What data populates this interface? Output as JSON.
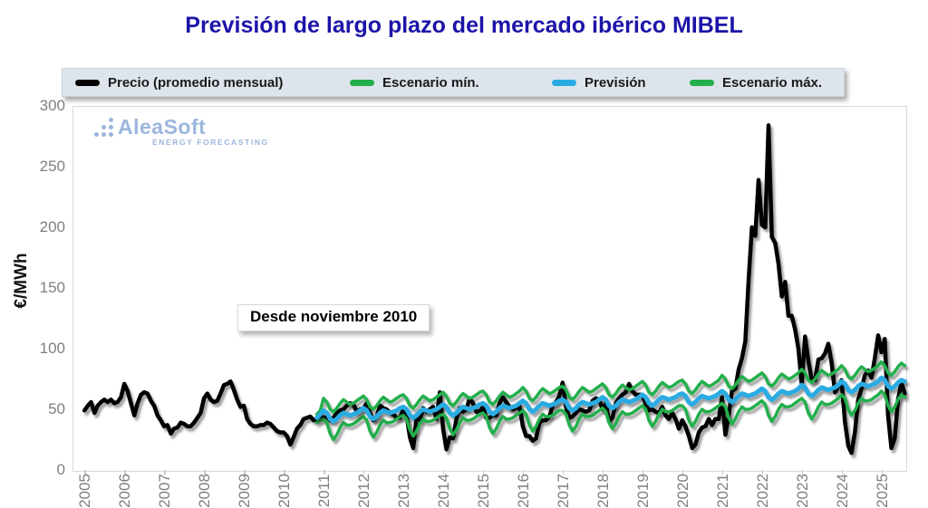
{
  "title": "Previsión de largo plazo del mercado ibérico MIBEL",
  "legend": {
    "items": [
      {
        "label": "Precio (promedio mensual)",
        "color": "#000000"
      },
      {
        "label": "Escenario mín.",
        "color": "#22af4c"
      },
      {
        "label": "Previsión",
        "color": "#29abe2"
      },
      {
        "label": "Escenario máx.",
        "color": "#22af4c"
      }
    ]
  },
  "watermark": {
    "name": "AleaSoft",
    "tagline": "ENERGY FORECASTING",
    "color": "#9cb6dc"
  },
  "annotation": "Desde noviembre 2010",
  "colors": {
    "title": "#1d14a8",
    "axis_text": "#7f7f7f",
    "plot_border": "#d9d9d9",
    "legend_bg": "#dde4eb"
  },
  "chart_data": {
    "type": "line",
    "title": "Previsión de largo plazo del mercado ibérico MIBEL",
    "xlabel": "",
    "ylabel": "€/MWh",
    "grid": false,
    "legend_position": "top",
    "x_range": [
      2004.7,
      2025.6
    ],
    "y_range": [
      0,
      300
    ],
    "x_ticks": [
      2005,
      2006,
      2007,
      2008,
      2009,
      2010,
      2011,
      2012,
      2013,
      2014,
      2015,
      2016,
      2017,
      2018,
      2019,
      2020,
      2021,
      2022,
      2023,
      2024,
      2025
    ],
    "y_ticks": [
      0,
      50,
      100,
      150,
      200,
      250,
      300
    ],
    "series": [
      {
        "name": "Precio (promedio mensual)",
        "color": "#000000",
        "width": 4.5,
        "start_year": 2005,
        "start_month": 1,
        "monthly_values": [
          49,
          53,
          56,
          47,
          53,
          56,
          58,
          56,
          58,
          55,
          56,
          60,
          71,
          65,
          55,
          45,
          55,
          62,
          64,
          63,
          57,
          53,
          45,
          41,
          36,
          37,
          30,
          34,
          35,
          39,
          38,
          36,
          36,
          39,
          43,
          47,
          59,
          63,
          58,
          56,
          57,
          63,
          70,
          71,
          73,
          66,
          58,
          52,
          53,
          42,
          38,
          36,
          36,
          37,
          37,
          39,
          38,
          35,
          32,
          31,
          31,
          28,
          21,
          27,
          34,
          37,
          42,
          43,
          44,
          41,
          42,
          46,
          42,
          44,
          41,
          43,
          47,
          49,
          50,
          53,
          55,
          54,
          48,
          50,
          51,
          55,
          47,
          41,
          44,
          53,
          51,
          50,
          47,
          46,
          43,
          43,
          50,
          45,
          27,
          18,
          43,
          41,
          51,
          48,
          50,
          52,
          42,
          64,
          34,
          17,
          27,
          26,
          42,
          51,
          48,
          50,
          59,
          55,
          48,
          48,
          52,
          43,
          43,
          45,
          45,
          55,
          60,
          56,
          52,
          50,
          51,
          53,
          36,
          28,
          28,
          24,
          26,
          39,
          41,
          41,
          44,
          53,
          56,
          61,
          72,
          52,
          43,
          44,
          47,
          50,
          49,
          48,
          49,
          57,
          59,
          58,
          50,
          55,
          40,
          43,
          55,
          59,
          62,
          64,
          71,
          65,
          62,
          62,
          62,
          54,
          49,
          50,
          48,
          47,
          52,
          45,
          42,
          47,
          42,
          34,
          41,
          36,
          28,
          18,
          21,
          31,
          35,
          36,
          42,
          37,
          42,
          42,
          60,
          29,
          45,
          65,
          67,
          83,
          92,
          106,
          156,
          200,
          193,
          239,
          202,
          200,
          284,
          192,
          187,
          170,
          143,
          155,
          127,
          127,
          116,
          100,
          70,
          110,
          90,
          74,
          74,
          91,
          92,
          96,
          104,
          88,
          64,
          69,
          74,
          40,
          20,
          14,
          31,
          58,
          67,
          78,
          82,
          76,
          92,
          111,
          97,
          108,
          45,
          18,
          26,
          58,
          72,
          63
        ]
      },
      {
        "name": "Escenario mín.",
        "color": "#22af4c",
        "width": 3.5,
        "start_year": 2010,
        "start_month": 11,
        "monthly_values": [
          39,
          41,
          42,
          39,
          30,
          25,
          29,
          35,
          39,
          37,
          37,
          38,
          40,
          42,
          44,
          41,
          32,
          27,
          31,
          37,
          41,
          39,
          39,
          40,
          42,
          44,
          45,
          42,
          33,
          28,
          32,
          38,
          42,
          40,
          40,
          41,
          43,
          45,
          46,
          43,
          34,
          29,
          33,
          39,
          43,
          41,
          41,
          42,
          44,
          46,
          47,
          44,
          35,
          30,
          34,
          40,
          44,
          42,
          42,
          43,
          45,
          47,
          49,
          46,
          37,
          32,
          36,
          42,
          46,
          44,
          44,
          45,
          47,
          49,
          49,
          46,
          37,
          32,
          36,
          42,
          46,
          44,
          44,
          45,
          47,
          49,
          51,
          48,
          39,
          34,
          38,
          44,
          48,
          46,
          46,
          47,
          49,
          51,
          53,
          50,
          41,
          36,
          40,
          46,
          50,
          48,
          48,
          49,
          51,
          53,
          53,
          50,
          41,
          36,
          40,
          46,
          50,
          48,
          48,
          49,
          51,
          53,
          55,
          52,
          43,
          38,
          42,
          48,
          52,
          50,
          50,
          51,
          53,
          55,
          57,
          54,
          45,
          40,
          44,
          50,
          54,
          52,
          52,
          53,
          55,
          57,
          59,
          56,
          47,
          42,
          46,
          52,
          56,
          54,
          54,
          55,
          57,
          59,
          62,
          59,
          50,
          45,
          49,
          55,
          59,
          57,
          57,
          58,
          60,
          62,
          65,
          62,
          53,
          48,
          52,
          58,
          62,
          60
        ]
      },
      {
        "name": "Escenario máx.",
        "color": "#22af4c",
        "width": 3.5,
        "start_year": 2010,
        "start_month": 11,
        "monthly_values": [
          46,
          49,
          59,
          56,
          50,
          48,
          51,
          55,
          58,
          56,
          54,
          55,
          57,
          59,
          61,
          58,
          52,
          50,
          53,
          57,
          60,
          58,
          56,
          57,
          59,
          61,
          62,
          59,
          53,
          51,
          54,
          58,
          61,
          59,
          57,
          58,
          60,
          62,
          64,
          61,
          55,
          53,
          56,
          60,
          63,
          61,
          59,
          60,
          62,
          64,
          65,
          62,
          56,
          54,
          57,
          61,
          64,
          62,
          60,
          61,
          63,
          65,
          68,
          65,
          59,
          57,
          60,
          64,
          67,
          65,
          63,
          64,
          66,
          68,
          69,
          66,
          60,
          58,
          61,
          65,
          68,
          66,
          64,
          65,
          67,
          69,
          71,
          68,
          62,
          60,
          63,
          67,
          70,
          68,
          66,
          67,
          69,
          71,
          73,
          70,
          64,
          62,
          65,
          69,
          72,
          70,
          68,
          69,
          71,
          73,
          74,
          71,
          65,
          63,
          66,
          70,
          73,
          71,
          69,
          70,
          72,
          74,
          78,
          75,
          69,
          67,
          70,
          74,
          77,
          75,
          73,
          74,
          76,
          78,
          80,
          77,
          71,
          69,
          72,
          76,
          79,
          77,
          75,
          76,
          78,
          80,
          83,
          80,
          74,
          72,
          75,
          79,
          82,
          80,
          78,
          79,
          81,
          83,
          86,
          83,
          77,
          75,
          78,
          82,
          85,
          83,
          81,
          82,
          84,
          86,
          89,
          86,
          80,
          78,
          81,
          85,
          88,
          86
        ]
      },
      {
        "name": "Previsión",
        "color": "#29abe2",
        "width": 5,
        "start_year": 2010,
        "start_month": 11,
        "monthly_values": [
          43,
          46,
          49,
          47,
          42,
          40,
          42,
          45,
          47,
          46,
          45,
          46,
          47,
          49,
          51,
          49,
          44,
          42,
          44,
          47,
          49,
          48,
          47,
          48,
          49,
          51,
          52,
          50,
          45,
          43,
          45,
          48,
          50,
          49,
          48,
          49,
          50,
          52,
          54,
          52,
          47,
          45,
          47,
          50,
          52,
          51,
          50,
          51,
          52,
          54,
          55,
          53,
          48,
          46,
          48,
          51,
          53,
          52,
          51,
          52,
          53,
          55,
          57,
          55,
          50,
          48,
          50,
          53,
          55,
          54,
          53,
          54,
          55,
          57,
          58,
          56,
          51,
          49,
          51,
          54,
          56,
          55,
          54,
          55,
          56,
          58,
          60,
          58,
          53,
          51,
          53,
          56,
          58,
          57,
          56,
          57,
          58,
          60,
          62,
          60,
          55,
          53,
          55,
          58,
          60,
          59,
          58,
          59,
          60,
          62,
          63,
          61,
          56,
          54,
          56,
          59,
          61,
          60,
          59,
          60,
          61,
          63,
          65,
          63,
          58,
          56,
          58,
          61,
          63,
          62,
          61,
          62,
          63,
          65,
          67,
          65,
          60,
          58,
          60,
          63,
          65,
          64,
          63,
          64,
          65,
          67,
          70,
          68,
          63,
          61,
          63,
          66,
          68,
          67,
          66,
          67,
          68,
          70,
          73,
          71,
          66,
          64,
          66,
          69,
          71,
          70,
          69,
          70,
          71,
          73,
          76,
          74,
          69,
          67,
          69,
          72,
          74,
          73
        ]
      }
    ]
  }
}
